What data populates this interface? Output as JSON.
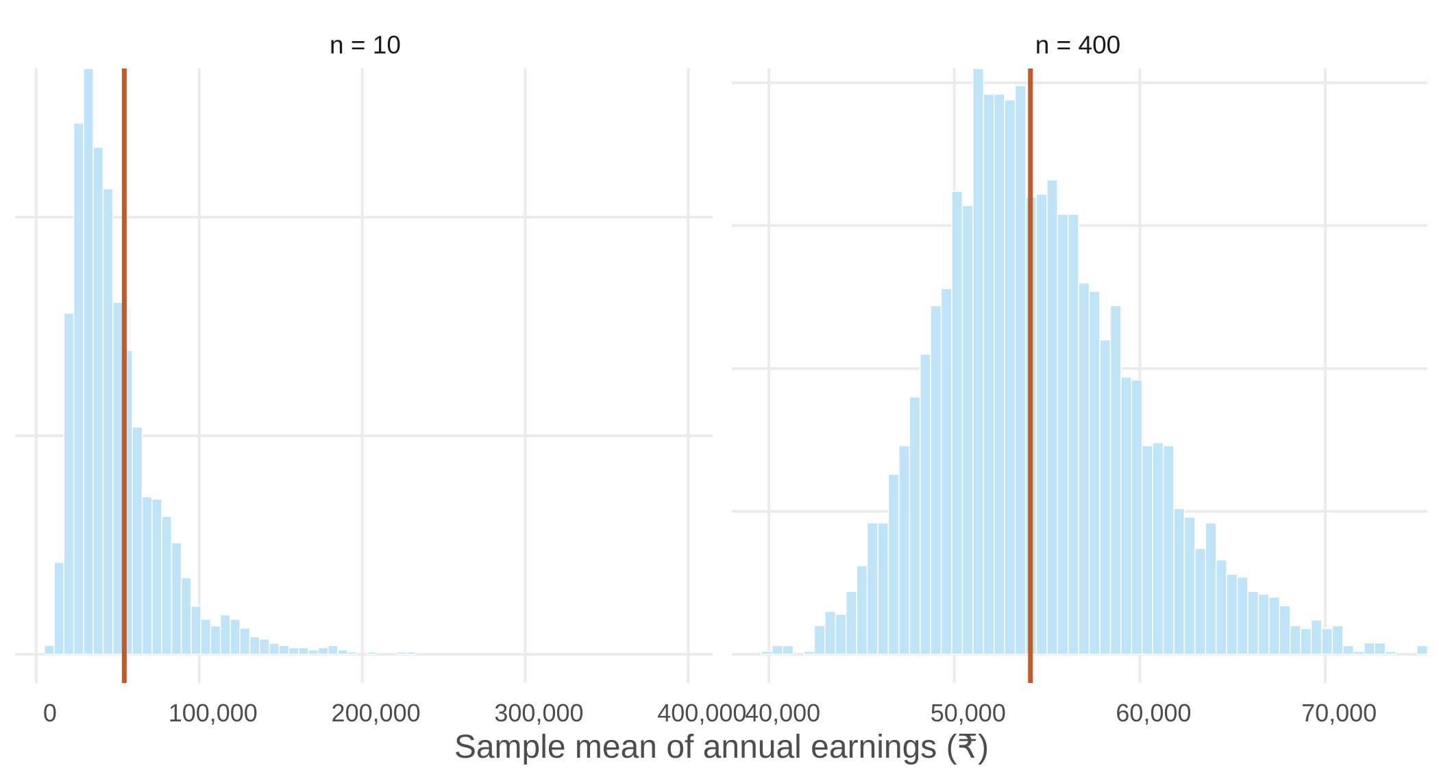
{
  "chart_data": [
    {
      "type": "bar",
      "title": "n = 10",
      "xlabel": "Sample mean of annual earnings (₹)",
      "ylabel": "",
      "xlim": [
        -13000,
        415000
      ],
      "ylim": [
        0,
        268
      ],
      "grid": true,
      "xticks": [
        0,
        100000,
        200000,
        300000,
        400000
      ],
      "xtick_labels": [
        "0",
        "100,000",
        "200,000",
        "300,000",
        "400,000"
      ],
      "yticks": [
        0,
        100,
        200
      ],
      "reference_line": 54000,
      "bin_start": 5000,
      "bin_width": 6000,
      "counts": [
        4,
        42,
        156,
        243,
        268,
        232,
        213,
        161,
        139,
        104,
        72,
        71,
        63,
        51,
        35,
        22,
        16,
        13,
        18,
        16,
        12,
        8,
        7,
        5,
        4,
        3,
        3,
        2,
        3,
        4,
        2,
        1,
        0,
        1,
        0,
        0,
        1,
        1,
        0,
        0,
        0,
        0,
        0,
        0,
        0,
        0,
        0,
        0,
        0,
        0,
        0,
        0,
        0,
        0,
        0,
        0,
        0,
        0,
        0,
        0,
        0,
        0,
        0,
        0,
        0,
        0,
        0,
        0,
        0,
        0,
        0,
        0,
        0,
        0,
        0,
        0,
        0,
        0,
        0,
        0,
        0,
        0,
        0,
        0,
        0,
        0,
        0,
        0,
        0,
        0,
        0,
        0,
        0,
        0,
        0,
        0
      ]
    },
    {
      "type": "bar",
      "title": "n = 400",
      "xlabel": "Sample mean of annual earnings (₹)",
      "ylabel": "",
      "xlim": [
        38000,
        75500
      ],
      "ylim": [
        0,
        205
      ],
      "grid": true,
      "xticks": [
        40000,
        50000,
        60000,
        70000
      ],
      "xtick_labels": [
        "40,000",
        "50,000",
        "60,000",
        "70,000"
      ],
      "yticks": [
        0,
        50,
        100,
        150,
        200
      ],
      "reference_line": 54100,
      "bin_start": 39600,
      "bin_width": 570,
      "counts": [
        1,
        3,
        3,
        0,
        1,
        10,
        15,
        14,
        22,
        31,
        46,
        46,
        63,
        73,
        90,
        105,
        122,
        128,
        162,
        157,
        205,
        196,
        196,
        194,
        199,
        160,
        161,
        166,
        154,
        154,
        130,
        127,
        110,
        122,
        97,
        96,
        73,
        74,
        73,
        51,
        48,
        37,
        46,
        33,
        28,
        27,
        22,
        21,
        20,
        17,
        10,
        9,
        12,
        9,
        10,
        3,
        1,
        4,
        4,
        1,
        0,
        0,
        3
      ]
    }
  ]
}
